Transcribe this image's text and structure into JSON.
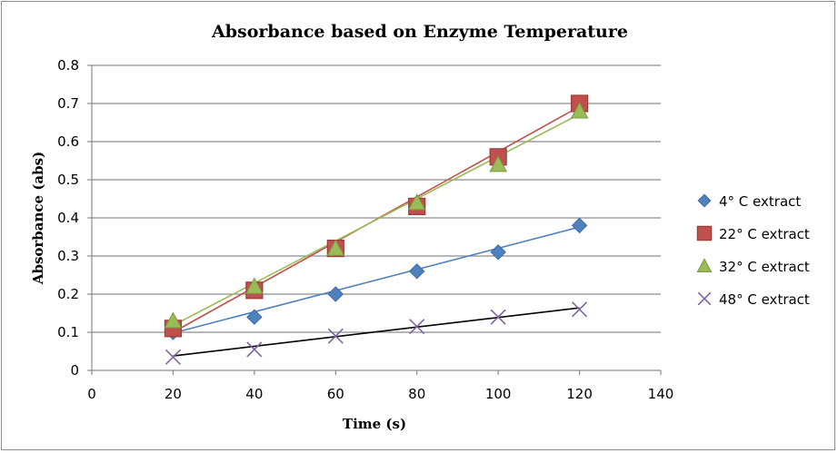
{
  "chart_data": {
    "type": "scatter",
    "title": "Absorbance based on Enzyme Temperature",
    "xlabel": "Time (s)",
    "ylabel": "Absorbance (abs)",
    "xlim": [
      0,
      140
    ],
    "ylim": [
      0,
      0.8
    ],
    "xticks": [
      "0",
      "20",
      "40",
      "60",
      "80",
      "100",
      "120",
      "140"
    ],
    "yticks": [
      "0",
      "0.1",
      "0.2",
      "0.3",
      "0.4",
      "0.5",
      "0.6",
      "0.7",
      "0.8"
    ],
    "grid": "horizontal",
    "legend_position": "right",
    "series": [
      {
        "name": "4° C extract",
        "marker": "diamond",
        "color": "#4F81BD",
        "x": [
          20,
          40,
          60,
          80,
          100,
          120
        ],
        "y": [
          0.1,
          0.14,
          0.2,
          0.26,
          0.31,
          0.38
        ],
        "trendline": {
          "color": "#4F81BD",
          "x": [
            20,
            120
          ],
          "y": [
            0.098,
            0.376
          ]
        }
      },
      {
        "name": "22° C extract",
        "marker": "square",
        "color": "#C0504D",
        "x": [
          20,
          40,
          60,
          80,
          100,
          120
        ],
        "y": [
          0.11,
          0.21,
          0.32,
          0.43,
          0.56,
          0.7
        ],
        "trendline": {
          "color": "#C0504D",
          "x": [
            20,
            120
          ],
          "y": [
            0.1,
            0.692
          ]
        }
      },
      {
        "name": "32° C extract",
        "marker": "triangle",
        "color": "#9BBB59",
        "x": [
          20,
          40,
          60,
          80,
          100,
          120
        ],
        "y": [
          0.13,
          0.22,
          0.32,
          0.44,
          0.54,
          0.68
        ],
        "trendline": {
          "color": "#9BBB59",
          "x": [
            20,
            120
          ],
          "y": [
            0.118,
            0.672
          ]
        }
      },
      {
        "name": "48° C extract",
        "marker": "x",
        "color": "#8064A2",
        "x": [
          20,
          40,
          60,
          80,
          100,
          120
        ],
        "y": [
          0.035,
          0.055,
          0.09,
          0.115,
          0.14,
          0.16
        ],
        "trendline": {
          "color": "#000000",
          "x": [
            20,
            120
          ],
          "y": [
            0.038,
            0.164
          ]
        }
      }
    ]
  }
}
